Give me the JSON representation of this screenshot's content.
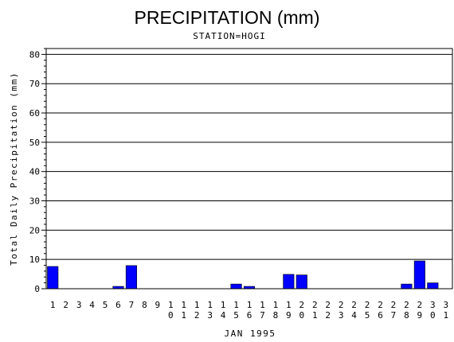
{
  "chart_data": {
    "type": "bar",
    "title": "PRECIPITATION (mm)",
    "subtitle": "STATION=HOGI",
    "xlabel": "JAN 1995",
    "ylabel": "Total Daily Precipitation (mm)",
    "categories": [
      "1",
      "2",
      "3",
      "4",
      "5",
      "6",
      "7",
      "8",
      "9",
      "10",
      "11",
      "12",
      "13",
      "14",
      "15",
      "16",
      "17",
      "18",
      "19",
      "20",
      "21",
      "22",
      "23",
      "24",
      "25",
      "26",
      "27",
      "28",
      "29",
      "30",
      "31"
    ],
    "values": [
      7.6,
      0,
      0,
      0,
      0,
      0.8,
      7.9,
      0,
      0,
      0,
      0,
      0,
      0,
      0,
      1.6,
      0.8,
      0,
      0,
      4.9,
      4.7,
      0,
      0,
      0,
      0,
      0,
      0,
      0,
      1.6,
      9.5,
      2.0,
      0
    ],
    "ylim": [
      0,
      82
    ],
    "yticks": [
      0,
      10,
      20,
      30,
      40,
      50,
      60,
      70,
      80
    ],
    "grid": true,
    "bar_color": "#0000ff"
  }
}
